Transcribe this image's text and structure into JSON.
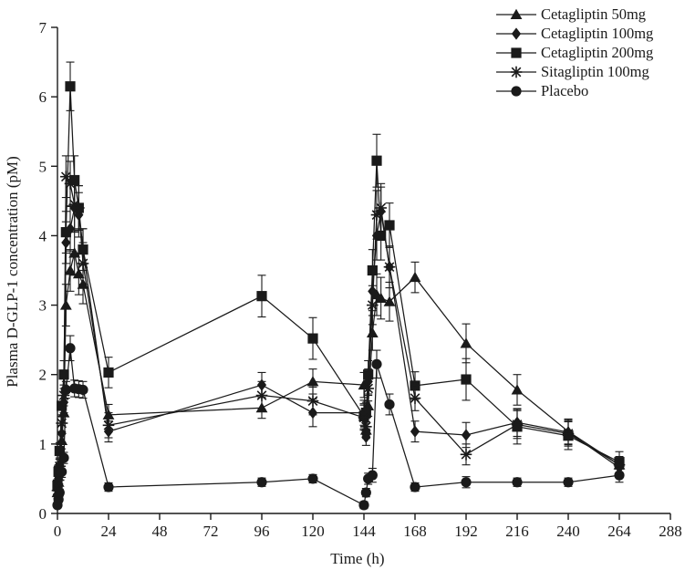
{
  "figure": {
    "background": "#ffffff",
    "ink_color": "#1a1a1a"
  },
  "chart_data": {
    "type": "line",
    "title": "",
    "xlabel": "Time (h)",
    "ylabel": "Plasma D-GLP-1 concentration (pM)",
    "xlim": [
      0,
      288
    ],
    "ylim": [
      0,
      7
    ],
    "x_ticks": [
      0,
      24,
      48,
      72,
      96,
      120,
      144,
      168,
      192,
      216,
      240,
      264,
      288
    ],
    "y_ticks": [
      0,
      1,
      2,
      3,
      4,
      5,
      6,
      7
    ],
    "grid": false,
    "legend_position": "top-right",
    "error_bars": true,
    "series": [
      {
        "name": "Cetagliptin 50mg",
        "marker": "triangle",
        "x": [
          0,
          0.5,
          1,
          2,
          3,
          4,
          6,
          8,
          10,
          12,
          24,
          96,
          120,
          144,
          145,
          146,
          148,
          150,
          152,
          156,
          168,
          192,
          216,
          240,
          264
        ],
        "y": [
          0.3,
          0.45,
          0.62,
          1.05,
          1.45,
          3.0,
          3.5,
          3.75,
          3.45,
          3.3,
          1.42,
          1.52,
          1.9,
          1.85,
          1.2,
          1.55,
          2.6,
          3.15,
          3.1,
          3.05,
          3.4,
          2.45,
          1.78,
          1.18,
          0.7
        ],
        "err": [
          0.08,
          0.08,
          0.1,
          0.12,
          0.15,
          0.3,
          0.3,
          0.32,
          0.3,
          0.28,
          0.15,
          0.15,
          0.18,
          0.18,
          0.12,
          0.15,
          0.25,
          0.3,
          0.3,
          0.28,
          0.22,
          0.28,
          0.22,
          0.18,
          0.12
        ]
      },
      {
        "name": "Cetagliptin 100mg",
        "marker": "diamond",
        "x": [
          0,
          0.5,
          1,
          2,
          3,
          4,
          6,
          8,
          10,
          12,
          24,
          96,
          120,
          144,
          145,
          146,
          148,
          150,
          152,
          156,
          168,
          192,
          216,
          240,
          264
        ],
        "y": [
          0.35,
          0.5,
          0.7,
          1.15,
          1.6,
          3.9,
          4.1,
          4.4,
          4.3,
          3.8,
          1.18,
          1.85,
          1.45,
          1.45,
          1.1,
          1.9,
          3.2,
          4.0,
          4.35,
          3.55,
          1.18,
          1.13,
          1.31,
          1.17,
          0.66
        ],
        "err": [
          0.08,
          0.08,
          0.1,
          0.12,
          0.15,
          0.3,
          0.32,
          0.35,
          0.32,
          0.3,
          0.15,
          0.18,
          0.2,
          0.18,
          0.12,
          0.18,
          0.28,
          0.35,
          0.35,
          0.3,
          0.15,
          0.18,
          0.2,
          0.18,
          0.12
        ]
      },
      {
        "name": "Cetagliptin 200mg",
        "marker": "square",
        "x": [
          0,
          0.5,
          1,
          2,
          3,
          4,
          6,
          8,
          10,
          12,
          24,
          96,
          120,
          144,
          145,
          146,
          148,
          150,
          152,
          156,
          168,
          192,
          216,
          240,
          264
        ],
        "y": [
          0.4,
          0.6,
          0.9,
          1.55,
          2.0,
          4.05,
          6.15,
          4.8,
          4.4,
          3.8,
          2.03,
          3.13,
          2.52,
          1.4,
          1.45,
          2.0,
          3.5,
          5.08,
          4.0,
          4.15,
          1.84,
          1.93,
          1.25,
          1.12,
          0.74
        ],
        "err": [
          0.08,
          0.1,
          0.12,
          0.15,
          0.2,
          0.3,
          0.35,
          0.35,
          0.32,
          0.3,
          0.22,
          0.3,
          0.3,
          0.18,
          0.15,
          0.2,
          0.3,
          0.38,
          0.35,
          0.32,
          0.2,
          0.3,
          0.25,
          0.2,
          0.15
        ]
      },
      {
        "name": "Sitagliptin 100mg",
        "marker": "star",
        "x": [
          0,
          0.5,
          1,
          2,
          3,
          4,
          6,
          8,
          10,
          12,
          24,
          96,
          120,
          144,
          145,
          146,
          148,
          150,
          152,
          156,
          168,
          192,
          216,
          240,
          264
        ],
        "y": [
          0.33,
          0.48,
          0.68,
          1.3,
          1.7,
          4.85,
          4.75,
          4.45,
          4.4,
          3.6,
          1.27,
          1.7,
          1.62,
          1.38,
          1.25,
          1.8,
          3.0,
          4.3,
          4.4,
          3.55,
          1.66,
          0.85,
          1.28,
          1.15,
          0.7
        ],
        "err": [
          0.08,
          0.08,
          0.1,
          0.12,
          0.15,
          0.3,
          0.32,
          0.35,
          0.32,
          0.3,
          0.18,
          0.2,
          0.2,
          0.18,
          0.12,
          0.18,
          0.28,
          0.35,
          0.35,
          0.3,
          0.18,
          0.15,
          0.2,
          0.18,
          0.12
        ]
      },
      {
        "name": "Placebo",
        "marker": "circle",
        "x": [
          0,
          0.5,
          1,
          2,
          3,
          4,
          6,
          8,
          10,
          12,
          24,
          96,
          120,
          144,
          145,
          146,
          148,
          150,
          156,
          168,
          192,
          216,
          240,
          264
        ],
        "y": [
          0.12,
          0.2,
          0.3,
          0.6,
          0.8,
          1.78,
          2.38,
          1.8,
          1.79,
          1.78,
          0.38,
          0.45,
          0.5,
          0.12,
          0.3,
          0.5,
          0.55,
          2.15,
          1.57,
          0.38,
          0.45,
          0.45,
          0.45,
          0.55
        ],
        "err": [
          0.04,
          0.04,
          0.05,
          0.08,
          0.08,
          0.12,
          0.18,
          0.12,
          0.12,
          0.12,
          0.06,
          0.06,
          0.06,
          0.05,
          0.06,
          0.08,
          0.1,
          0.2,
          0.15,
          0.06,
          0.08,
          0.06,
          0.06,
          0.1
        ]
      }
    ]
  }
}
